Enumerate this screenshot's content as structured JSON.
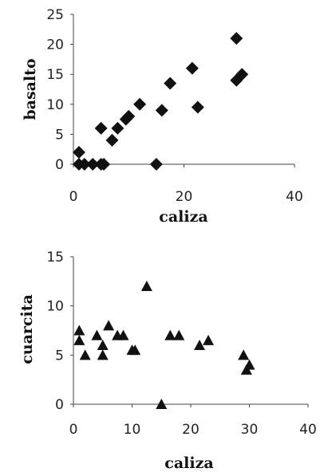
{
  "chart_data": [
    {
      "type": "scatter",
      "marker": "diamond",
      "marker_color": "#111111",
      "xlabel": "caliza",
      "ylabel": "basalto",
      "xlim": [
        0,
        40
      ],
      "ylim": [
        0,
        25
      ],
      "xticks": [
        0,
        20,
        40
      ],
      "yticks": [
        0,
        5,
        10,
        15,
        20,
        25
      ],
      "grid": false,
      "legend": "none",
      "points": [
        {
          "x": 1,
          "y": 2
        },
        {
          "x": 1,
          "y": 0
        },
        {
          "x": 2,
          "y": 0
        },
        {
          "x": 3.5,
          "y": 0
        },
        {
          "x": 5,
          "y": 0
        },
        {
          "x": 5.5,
          "y": 0
        },
        {
          "x": 5,
          "y": 6
        },
        {
          "x": 7,
          "y": 4
        },
        {
          "x": 8,
          "y": 6
        },
        {
          "x": 9.5,
          "y": 7.5
        },
        {
          "x": 10,
          "y": 8
        },
        {
          "x": 12,
          "y": 10
        },
        {
          "x": 15,
          "y": 0
        },
        {
          "x": 16,
          "y": 9
        },
        {
          "x": 17.5,
          "y": 13.5
        },
        {
          "x": 21.5,
          "y": 16
        },
        {
          "x": 22.5,
          "y": 9.5
        },
        {
          "x": 29.5,
          "y": 21
        },
        {
          "x": 29.5,
          "y": 14
        },
        {
          "x": 30.5,
          "y": 15
        }
      ]
    },
    {
      "type": "scatter",
      "marker": "triangle",
      "marker_color": "#111111",
      "xlabel": "caliza",
      "ylabel": "cuarcita",
      "xlim": [
        0,
        40
      ],
      "ylim": [
        0,
        15
      ],
      "xticks": [
        0,
        10,
        20,
        30,
        40
      ],
      "yticks": [
        0,
        5,
        10,
        15
      ],
      "grid": false,
      "legend": "none",
      "points": [
        {
          "x": 1,
          "y": 7.5
        },
        {
          "x": 1,
          "y": 6.5
        },
        {
          "x": 2,
          "y": 5
        },
        {
          "x": 4,
          "y": 7
        },
        {
          "x": 5,
          "y": 6
        },
        {
          "x": 5,
          "y": 5
        },
        {
          "x": 6,
          "y": 8
        },
        {
          "x": 7.5,
          "y": 7
        },
        {
          "x": 8.5,
          "y": 7
        },
        {
          "x": 10,
          "y": 5.5
        },
        {
          "x": 10.5,
          "y": 5.5
        },
        {
          "x": 12.5,
          "y": 12
        },
        {
          "x": 15,
          "y": 0
        },
        {
          "x": 16.5,
          "y": 7
        },
        {
          "x": 18,
          "y": 7
        },
        {
          "x": 21.5,
          "y": 6
        },
        {
          "x": 23,
          "y": 6.5
        },
        {
          "x": 29,
          "y": 5
        },
        {
          "x": 30,
          "y": 4
        },
        {
          "x": 29.5,
          "y": 3.5
        }
      ]
    }
  ]
}
